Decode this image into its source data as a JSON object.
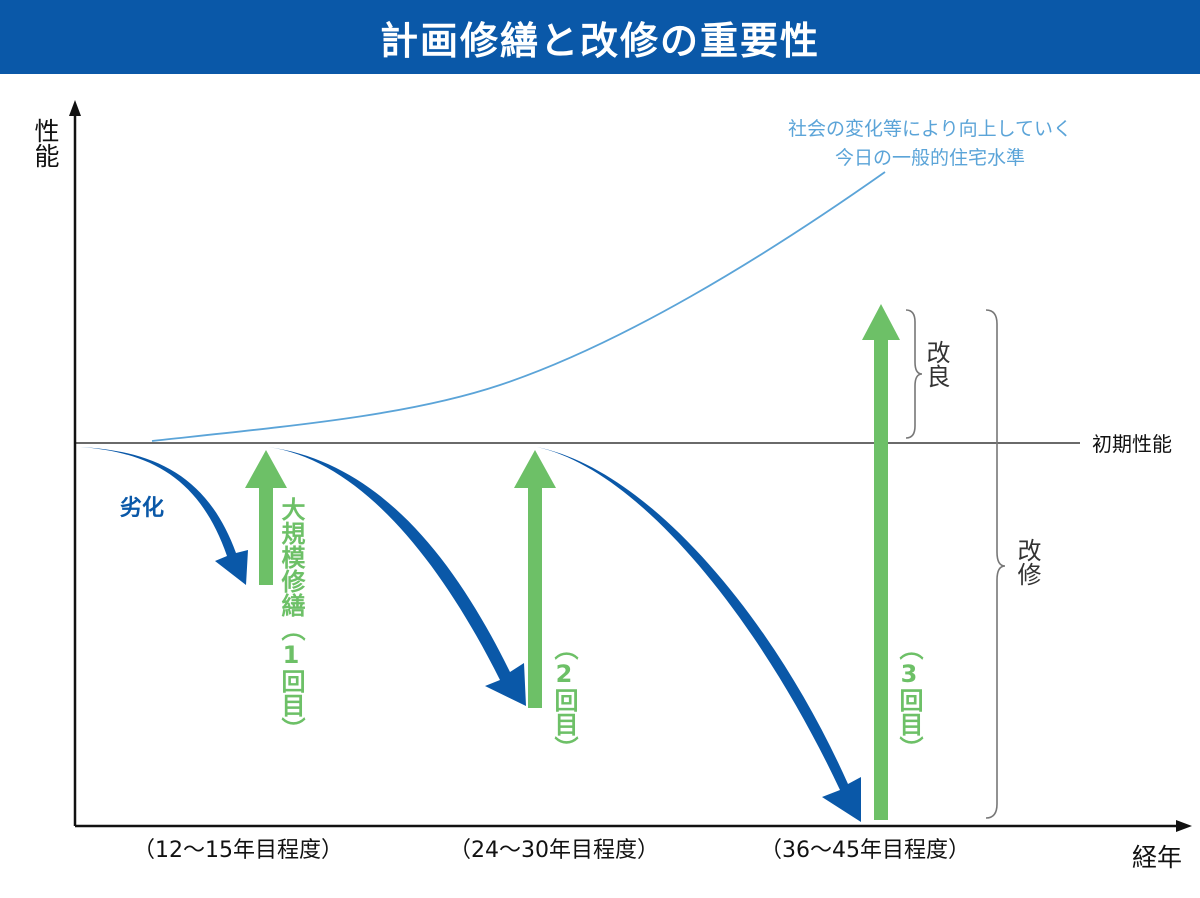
{
  "title": "計画修繕と改修の重要性",
  "axes": {
    "y_label": "性能",
    "x_label": "経年"
  },
  "baseline_label": "初期性能",
  "society_curve_label": {
    "line1": "社会の変化等により向上していく",
    "line2": "今日の一般的住宅水準"
  },
  "degradation_label": "劣化",
  "repairs": [
    {
      "label": "大規模修繕（1回目）"
    },
    {
      "label": "（2回目）"
    },
    {
      "label": "（3回目）"
    }
  ],
  "braces": {
    "improvement": "改良",
    "renovation": "改修"
  },
  "x_ticks": [
    "（12～15年目程度）",
    "（24～30年目程度）",
    "（36～45年目程度）"
  ],
  "colors": {
    "header_bg": "#0a58a8",
    "degradation_arrow": "#0a58a8",
    "repair_arrow": "#6dc067",
    "society_curve": "#5ba4d8",
    "axis": "#111111",
    "brace": "#777777"
  }
}
